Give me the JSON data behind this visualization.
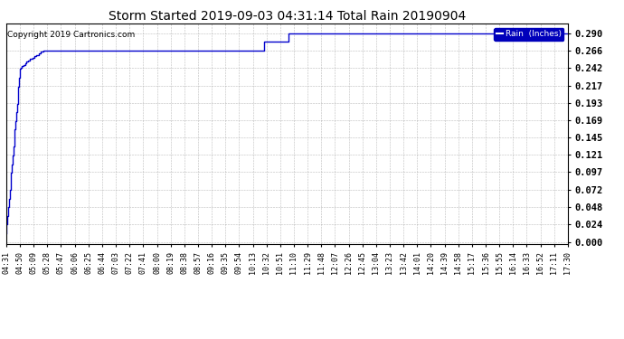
{
  "title": "Storm Started 2019-09-03 04:31:14 Total Rain 20190904",
  "copyright_text": "Copyright 2019 Cartronics.com",
  "legend_label": "Rain  (Inches)",
  "legend_bg_color": "#0000bb",
  "legend_text_color": "#ffffff",
  "line_color": "#0000cc",
  "background_color": "#ffffff",
  "grid_color": "#aaaaaa",
  "y_ticks": [
    0.0,
    0.024,
    0.048,
    0.072,
    0.097,
    0.121,
    0.145,
    0.169,
    0.193,
    0.217,
    0.242,
    0.266,
    0.29
  ],
  "ylim": [
    -0.003,
    0.303
  ],
  "x_tick_labels": [
    "04:31",
    "04:50",
    "05:09",
    "05:28",
    "05:47",
    "06:06",
    "06:25",
    "06:44",
    "07:03",
    "07:22",
    "07:41",
    "08:00",
    "08:19",
    "08:38",
    "08:57",
    "09:16",
    "09:35",
    "09:54",
    "10:13",
    "10:32",
    "10:51",
    "11:10",
    "11:29",
    "11:48",
    "12:07",
    "12:26",
    "12:45",
    "13:04",
    "13:23",
    "13:42",
    "14:01",
    "14:20",
    "14:39",
    "14:58",
    "15:17",
    "15:36",
    "15:55",
    "16:14",
    "16:33",
    "16:52",
    "17:11",
    "17:30"
  ],
  "data_x": [
    0,
    2,
    3,
    4,
    5,
    6,
    7,
    8,
    9,
    10,
    11,
    12,
    13,
    14,
    15,
    16,
    17,
    18,
    19,
    20,
    22,
    24,
    26,
    28,
    30,
    33,
    36,
    39,
    42,
    45,
    48,
    52,
    56,
    60,
    65,
    70,
    76,
    83,
    90,
    98,
    107,
    116,
    126,
    137,
    148,
    160,
    173,
    187,
    202,
    218,
    235,
    253,
    272,
    292,
    313,
    335,
    358,
    375,
    392,
    410,
    429,
    448,
    779
  ],
  "data_y": [
    0.012,
    0.024,
    0.036,
    0.048,
    0.06,
    0.072,
    0.084,
    0.096,
    0.108,
    0.12,
    0.132,
    0.144,
    0.156,
    0.168,
    0.18,
    0.192,
    0.204,
    0.216,
    0.228,
    0.24,
    0.242,
    0.244,
    0.246,
    0.248,
    0.25,
    0.252,
    0.254,
    0.256,
    0.258,
    0.26,
    0.262,
    0.264,
    0.266,
    0.266,
    0.266,
    0.266,
    0.266,
    0.266,
    0.266,
    0.266,
    0.266,
    0.266,
    0.266,
    0.266,
    0.266,
    0.266,
    0.266,
    0.266,
    0.266,
    0.266,
    0.266,
    0.266,
    0.266,
    0.266,
    0.266,
    0.266,
    0.266,
    0.278,
    0.278,
    0.29,
    0.29,
    0.29,
    0.29
  ],
  "title_fontsize": 10,
  "copyright_fontsize": 6.5,
  "tick_fontsize": 6,
  "ytick_fontsize": 7.5,
  "ytick_fontweight": "bold"
}
